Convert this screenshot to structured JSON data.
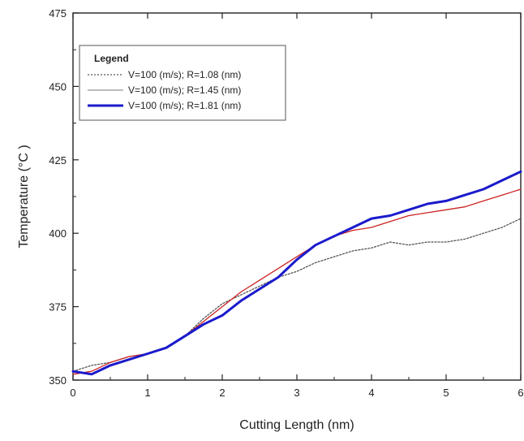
{
  "chart_data": {
    "type": "line",
    "title": "",
    "xlabel": "Cutting Length (nm)",
    "ylabel": "Temperature (°C )",
    "xlim": [
      0,
      6
    ],
    "ylim": [
      350,
      475
    ],
    "x_ticks": [
      "0",
      "1",
      "2",
      "3",
      "4",
      "5",
      "6"
    ],
    "y_ticks": [
      "350",
      "375",
      "400",
      "425",
      "450",
      "475"
    ],
    "grid": false,
    "legend": {
      "title": "Legend",
      "position": "top-left"
    },
    "series": [
      {
        "name": "V=100 (m/s); R=1.08 (nm)",
        "style": "dotted",
        "color": "#555555",
        "x": [
          0,
          0.25,
          0.5,
          0.75,
          1,
          1.25,
          1.5,
          1.75,
          2,
          2.25,
          2.5,
          2.75,
          3,
          3.25,
          3.5,
          3.75,
          4,
          4.25,
          4.5,
          4.75,
          5,
          5.25,
          5.5,
          5.75,
          6
        ],
        "y": [
          353,
          355,
          356,
          358,
          359,
          361,
          365,
          371,
          376,
          379,
          382,
          385,
          387,
          390,
          392,
          394,
          395,
          397,
          396,
          397,
          397,
          398,
          400,
          402,
          405
        ]
      },
      {
        "name": "V=100 (m/s); R=1.45 (nm)",
        "style": "solid-thin",
        "color": "#cc2222",
        "x": [
          0,
          0.25,
          0.5,
          0.75,
          1,
          1.25,
          1.5,
          1.75,
          2,
          2.25,
          2.5,
          2.75,
          3,
          3.25,
          3.5,
          3.75,
          4,
          4.25,
          4.5,
          4.75,
          5,
          5.25,
          5.5,
          5.75,
          6
        ],
        "y": [
          352,
          353,
          356,
          358,
          359,
          361,
          365,
          370,
          375,
          380,
          384,
          388,
          392,
          396,
          399,
          401,
          402,
          404,
          406,
          407,
          408,
          409,
          411,
          413,
          415
        ]
      },
      {
        "name": "V=100 (m/s); R=1.81 (nm)",
        "style": "solid-thick",
        "color": "#1a1acc",
        "x": [
          0,
          0.25,
          0.5,
          0.75,
          1,
          1.25,
          1.5,
          1.75,
          2,
          2.25,
          2.5,
          2.75,
          3,
          3.25,
          3.5,
          3.75,
          4,
          4.25,
          4.5,
          4.75,
          5,
          5.25,
          5.5,
          5.75,
          6
        ],
        "y": [
          353,
          352,
          355,
          357,
          359,
          361,
          365,
          369,
          372,
          377,
          381,
          385,
          391,
          396,
          399,
          402,
          405,
          406,
          408,
          410,
          411,
          413,
          415,
          418,
          421
        ]
      }
    ]
  }
}
